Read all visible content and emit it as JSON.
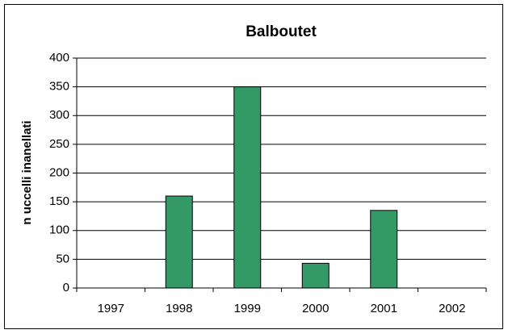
{
  "chart_data": {
    "type": "bar",
    "title": "Balboutet",
    "y_label": "n uccelli inanellati",
    "categories": [
      "1997",
      "1998",
      "1999",
      "2000",
      "2001",
      "2002"
    ],
    "values": [
      0,
      160,
      350,
      43,
      135,
      0
    ],
    "color": "#339966",
    "ylim": [
      0,
      400
    ],
    "yticks": [
      0,
      50,
      100,
      150,
      200,
      250,
      300,
      350,
      400
    ],
    "grid": true
  }
}
